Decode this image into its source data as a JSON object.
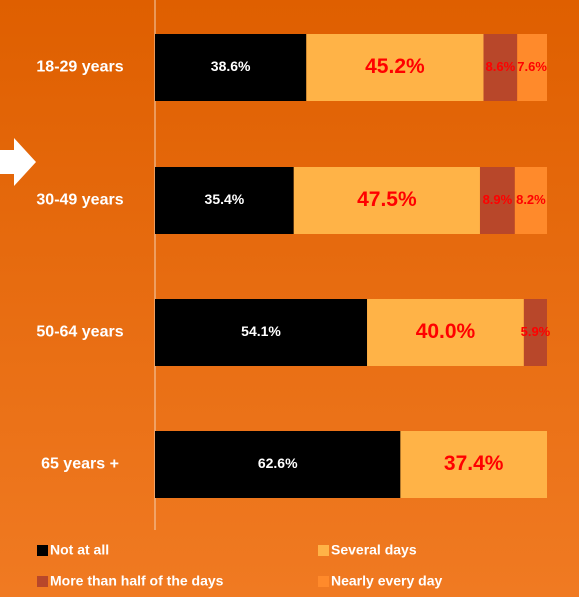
{
  "chart_data": {
    "type": "stacked-bar-horizontal",
    "categories": [
      "18-29 years",
      "30-49 years",
      "50-64 years",
      "65 years +"
    ],
    "xlim": [
      0,
      100
    ],
    "series": [
      {
        "name": "Not at all",
        "color": "#000000",
        "values": [
          38.6,
          35.4,
          54.1,
          62.6
        ],
        "value_labels": [
          "38.6%",
          "35.4%",
          "54.1%",
          "62.6%"
        ]
      },
      {
        "name": "Several days",
        "color": "#ffb347",
        "values": [
          45.2,
          47.5,
          40.0,
          37.4
        ],
        "value_labels": [
          "45.2%",
          "47.5%",
          "40.0%",
          "37.4%"
        ]
      },
      {
        "name": "More than half of the days",
        "color": "#b8472a",
        "values": [
          8.6,
          8.9,
          5.9,
          null
        ],
        "value_labels": [
          "8.6%",
          "8.9%",
          "5.9%",
          null
        ]
      },
      {
        "name": "Nearly every day",
        "color": "#ff8a2b",
        "values": [
          7.6,
          8.2,
          null,
          null
        ],
        "value_labels": [
          "7.6%",
          "8.2%",
          null,
          null
        ]
      }
    ]
  }
}
